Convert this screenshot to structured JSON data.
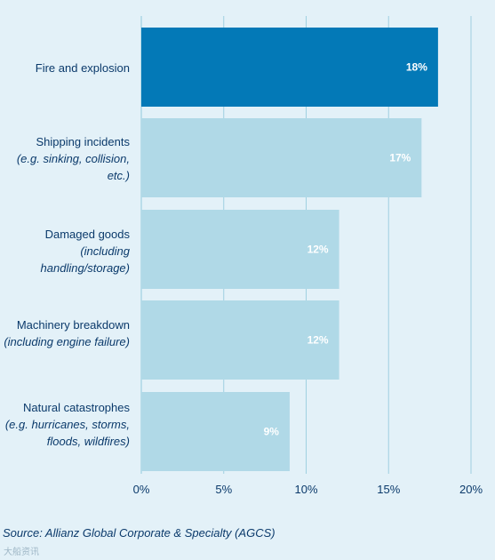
{
  "chart_data": {
    "type": "bar",
    "orientation": "horizontal",
    "categories": [
      {
        "label": "Fire and explosion",
        "sublabel": ""
      },
      {
        "label": "Shipping incidents",
        "sublabel": "(e.g. sinking, collision, etc.)"
      },
      {
        "label": "Damaged goods",
        "sublabel": "(including handling/storage)"
      },
      {
        "label": "Machinery breakdown",
        "sublabel": "(including engine failure)"
      },
      {
        "label": "Natural catastrophes",
        "sublabel": "(e.g. hurricanes, storms, floods, wildfires)"
      }
    ],
    "values": [
      18,
      17,
      12,
      12,
      9
    ],
    "data_labels": [
      "18%",
      "17%",
      "12%",
      "12%",
      "9%"
    ],
    "xlim": [
      0,
      20
    ],
    "x_ticks": [
      0,
      5,
      10,
      15,
      20
    ],
    "x_tick_labels": [
      "0%",
      "5%",
      "10%",
      "15%",
      "20%"
    ],
    "grid": "vertical",
    "highlight_index": 0,
    "colors": {
      "highlight": "#0379b7",
      "bar": "#b0d9e7",
      "grid": "#9fd0e0",
      "text": "#0b3a6b",
      "label_text": "#ffffff",
      "background": "#e3f1f8"
    }
  },
  "source": "Source: Allianz Global Corporate & Specialty (AGCS)",
  "watermark": "大船资讯"
}
